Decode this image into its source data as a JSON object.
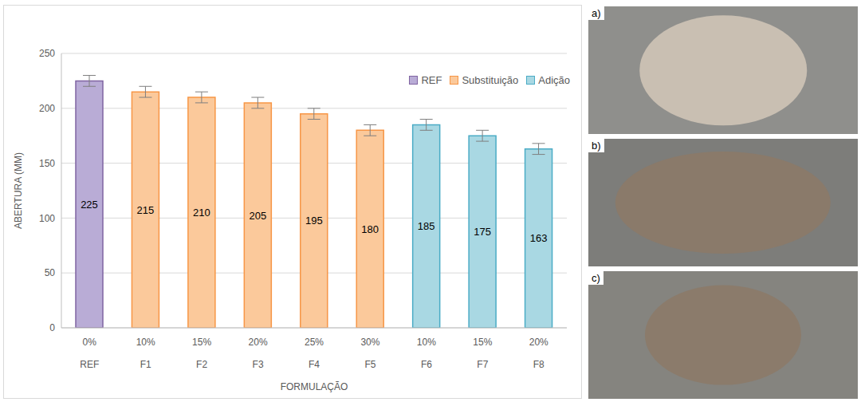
{
  "chart_data": {
    "type": "bar",
    "x_label": "FORMULAÇÃO",
    "y_label": "ABERTURA (MM)",
    "categories": [
      "0%",
      "10%",
      "15%",
      "20%",
      "25%",
      "30%",
      "10%",
      "15%",
      "20%"
    ],
    "groups": [
      "REF",
      "F1",
      "F2",
      "F3",
      "F4",
      "F5",
      "F6",
      "F7",
      "F8"
    ],
    "series": [
      {
        "name": "REF",
        "color": "#b9acd6",
        "values": [
          225,
          null,
          null,
          null,
          null,
          null,
          null,
          null,
          null
        ]
      },
      {
        "name": "Substituição",
        "color": "#fbc99b",
        "values": [
          null,
          215,
          210,
          205,
          195,
          180,
          null,
          null,
          null
        ]
      },
      {
        "name": "Adição",
        "color": "#a9d8e3",
        "values": [
          null,
          null,
          null,
          null,
          null,
          null,
          185,
          175,
          163
        ]
      }
    ],
    "errors": [
      5,
      5,
      5,
      5,
      5,
      5,
      5,
      5,
      5
    ],
    "ylim": [
      0,
      250
    ],
    "yticks": [
      0,
      50,
      100,
      150,
      200,
      250
    ],
    "grid": true,
    "legend": "upper right",
    "data_labels": true
  },
  "panels": [
    "a)",
    "b)",
    "c)"
  ]
}
